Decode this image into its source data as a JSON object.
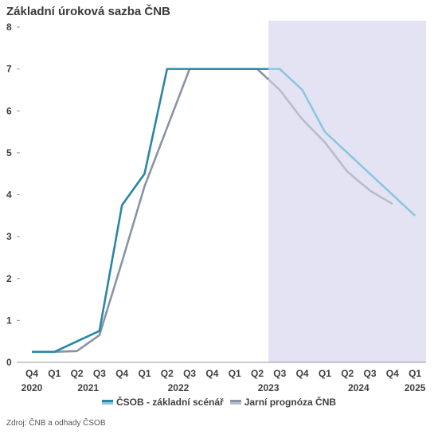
{
  "chart_data": {
    "type": "line",
    "title": "Základní úroková sazba ČNB",
    "categories": [
      "Q4",
      "Q1",
      "Q2",
      "Q3",
      "Q4",
      "Q1",
      "Q2",
      "Q3",
      "Q4",
      "Q1",
      "Q2",
      "Q3",
      "Q4",
      "Q1",
      "Q2",
      "Q3",
      "Q4",
      "Q1"
    ],
    "years": [
      {
        "label": "2020",
        "index": 0
      },
      {
        "label": "2021",
        "index": 2.5
      },
      {
        "label": "2022",
        "index": 6.5
      },
      {
        "label": "2023",
        "index": 10.5
      },
      {
        "label": "2024",
        "index": 14.5
      },
      {
        "label": "2025",
        "index": 17
      }
    ],
    "ylim": [
      0,
      8
    ],
    "yticks": [
      0,
      1,
      2,
      3,
      4,
      5,
      6,
      7,
      8
    ],
    "forecast_from_index": 10.5,
    "forecast_shade_color": "#e3e3f3",
    "series": [
      {
        "name": "ČSOB - základní scénář",
        "color_actual": "#2a86a6",
        "color_forecast": "#8ec5e0",
        "x": [
          0,
          1,
          2,
          3,
          4,
          5,
          6,
          7,
          8,
          9,
          10,
          11,
          12,
          13,
          14,
          15,
          16,
          17
        ],
        "values": [
          0.25,
          0.25,
          0.5,
          0.75,
          3.75,
          4.5,
          7.0,
          7.0,
          7.0,
          7.0,
          7.0,
          7.0,
          6.5,
          5.5,
          5.0,
          4.5,
          4.0,
          3.5
        ]
      },
      {
        "name": "Jarní prognóza ČNB",
        "color_actual": "#8894a4",
        "color_forecast": "#b8bdca",
        "x": [
          0,
          1,
          2,
          3,
          4,
          5,
          6,
          7,
          8,
          9,
          10,
          11,
          12,
          13,
          14,
          15,
          16
        ],
        "values": [
          0.25,
          0.25,
          0.27,
          0.65,
          2.4,
          4.2,
          5.6,
          7.0,
          7.0,
          7.0,
          7.0,
          6.5,
          5.8,
          5.25,
          4.55,
          4.1,
          3.78
        ]
      }
    ]
  },
  "legend": {
    "item1": "ČSOB - základní scénář",
    "item2": "Jarní prognóza ČNB"
  },
  "source": "Zdroj: ČNB a odhady ČSOB"
}
